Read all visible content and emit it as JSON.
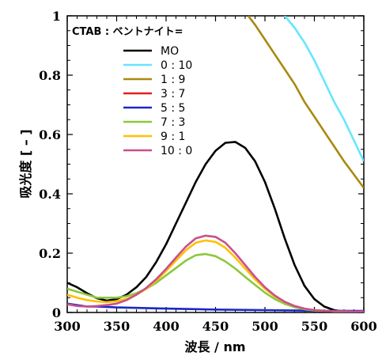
{
  "chart_data": {
    "type": "line",
    "xlabel": "波長 / nm",
    "ylabel": "吸光度 [ – ]",
    "xlim": [
      300,
      600
    ],
    "ylim": [
      0,
      1
    ],
    "x_ticks": [
      "300",
      "350",
      "400",
      "450",
      "500",
      "550",
      "600"
    ],
    "y_ticks": [
      "0",
      "0.2",
      "0.4",
      "0.6",
      "0.8",
      "1"
    ],
    "grid": false,
    "legend": {
      "title": "CTAB : ベントナイト=",
      "placement": "top-left",
      "entries": [
        "MO",
        "0 : 10",
        "1 : 9",
        "3 : 7",
        "5 : 5",
        "7 : 3",
        "9 : 1",
        "10 : 0"
      ]
    },
    "series": [
      {
        "name": "MO",
        "color": "#000000",
        "points": [
          [
            300,
            0.1
          ],
          [
            310,
            0.085
          ],
          [
            320,
            0.065
          ],
          [
            330,
            0.048
          ],
          [
            340,
            0.04
          ],
          [
            350,
            0.045
          ],
          [
            360,
            0.06
          ],
          [
            370,
            0.085
          ],
          [
            380,
            0.12
          ],
          [
            390,
            0.17
          ],
          [
            400,
            0.23
          ],
          [
            410,
            0.3
          ],
          [
            420,
            0.37
          ],
          [
            430,
            0.44
          ],
          [
            440,
            0.5
          ],
          [
            450,
            0.545
          ],
          [
            460,
            0.572
          ],
          [
            470,
            0.575
          ],
          [
            480,
            0.555
          ],
          [
            490,
            0.51
          ],
          [
            500,
            0.44
          ],
          [
            510,
            0.35
          ],
          [
            520,
            0.25
          ],
          [
            530,
            0.16
          ],
          [
            540,
            0.09
          ],
          [
            550,
            0.045
          ],
          [
            560,
            0.02
          ],
          [
            570,
            0.008
          ],
          [
            580,
            0.003
          ],
          [
            600,
            0.002
          ]
        ]
      },
      {
        "name": "0 : 10",
        "color": "#66E6FF",
        "points": [
          [
            520,
            1.0
          ],
          [
            530,
            0.96
          ],
          [
            540,
            0.91
          ],
          [
            550,
            0.85
          ],
          [
            560,
            0.78
          ],
          [
            570,
            0.71
          ],
          [
            580,
            0.65
          ],
          [
            590,
            0.58
          ],
          [
            600,
            0.51
          ]
        ]
      },
      {
        "name": "1 : 9",
        "color": "#A88A10",
        "points": [
          [
            483,
            1.0
          ],
          [
            490,
            0.97
          ],
          [
            500,
            0.92
          ],
          [
            510,
            0.87
          ],
          [
            520,
            0.82
          ],
          [
            530,
            0.77
          ],
          [
            540,
            0.71
          ],
          [
            550,
            0.66
          ],
          [
            560,
            0.61
          ],
          [
            570,
            0.56
          ],
          [
            580,
            0.51
          ],
          [
            590,
            0.465
          ],
          [
            600,
            0.42
          ]
        ]
      },
      {
        "name": "3 : 7",
        "color": "#E61E1E",
        "points": [
          [
            335,
            -0.01
          ],
          [
            350,
            -0.008
          ],
          [
            400,
            -0.006
          ],
          [
            450,
            -0.005
          ],
          [
            500,
            -0.004
          ],
          [
            550,
            -0.004
          ],
          [
            600,
            -0.004
          ]
        ]
      },
      {
        "name": "5 : 5",
        "color": "#1A28C8",
        "points": [
          [
            300,
            0.03
          ],
          [
            310,
            0.025
          ],
          [
            320,
            0.02
          ],
          [
            330,
            0.02
          ],
          [
            340,
            0.019
          ],
          [
            350,
            0.017
          ],
          [
            400,
            0.013
          ],
          [
            450,
            0.01
          ],
          [
            500,
            0.008
          ],
          [
            550,
            0.006
          ],
          [
            600,
            0.005
          ]
        ]
      },
      {
        "name": "7 : 3",
        "color": "#8CC83C",
        "points": [
          [
            300,
            0.08
          ],
          [
            310,
            0.07
          ],
          [
            320,
            0.06
          ],
          [
            330,
            0.05
          ],
          [
            340,
            0.05
          ],
          [
            350,
            0.05
          ],
          [
            360,
            0.055
          ],
          [
            370,
            0.065
          ],
          [
            380,
            0.08
          ],
          [
            390,
            0.1
          ],
          [
            400,
            0.125
          ],
          [
            410,
            0.15
          ],
          [
            420,
            0.175
          ],
          [
            430,
            0.193
          ],
          [
            440,
            0.197
          ],
          [
            450,
            0.19
          ],
          [
            460,
            0.172
          ],
          [
            470,
            0.148
          ],
          [
            480,
            0.12
          ],
          [
            490,
            0.093
          ],
          [
            500,
            0.067
          ],
          [
            510,
            0.045
          ],
          [
            520,
            0.029
          ],
          [
            530,
            0.018
          ],
          [
            540,
            0.011
          ],
          [
            550,
            0.007
          ],
          [
            570,
            0.004
          ],
          [
            600,
            0.003
          ]
        ]
      },
      {
        "name": "9 : 1",
        "color": "#FFC000",
        "points": [
          [
            300,
            0.06
          ],
          [
            310,
            0.05
          ],
          [
            320,
            0.042
          ],
          [
            330,
            0.037
          ],
          [
            340,
            0.035
          ],
          [
            350,
            0.038
          ],
          [
            360,
            0.046
          ],
          [
            370,
            0.06
          ],
          [
            380,
            0.08
          ],
          [
            390,
            0.107
          ],
          [
            400,
            0.14
          ],
          [
            410,
            0.175
          ],
          [
            420,
            0.21
          ],
          [
            430,
            0.235
          ],
          [
            440,
            0.243
          ],
          [
            450,
            0.238
          ],
          [
            460,
            0.218
          ],
          [
            470,
            0.185
          ],
          [
            480,
            0.148
          ],
          [
            490,
            0.112
          ],
          [
            500,
            0.08
          ],
          [
            510,
            0.054
          ],
          [
            520,
            0.035
          ],
          [
            530,
            0.022
          ],
          [
            540,
            0.013
          ],
          [
            550,
            0.008
          ],
          [
            570,
            0.004
          ],
          [
            600,
            0.003
          ]
        ]
      },
      {
        "name": "10 : 0",
        "color": "#C8508C",
        "points": [
          [
            300,
            0.028
          ],
          [
            310,
            0.022
          ],
          [
            320,
            0.02
          ],
          [
            330,
            0.022
          ],
          [
            340,
            0.025
          ],
          [
            350,
            0.03
          ],
          [
            360,
            0.042
          ],
          [
            370,
            0.06
          ],
          [
            380,
            0.083
          ],
          [
            390,
            0.112
          ],
          [
            400,
            0.147
          ],
          [
            410,
            0.185
          ],
          [
            420,
            0.222
          ],
          [
            430,
            0.25
          ],
          [
            440,
            0.259
          ],
          [
            450,
            0.255
          ],
          [
            460,
            0.235
          ],
          [
            470,
            0.2
          ],
          [
            480,
            0.16
          ],
          [
            490,
            0.12
          ],
          [
            500,
            0.085
          ],
          [
            510,
            0.057
          ],
          [
            520,
            0.036
          ],
          [
            530,
            0.022
          ],
          [
            540,
            0.013
          ],
          [
            550,
            0.008
          ],
          [
            570,
            0.004
          ],
          [
            600,
            0.003
          ]
        ]
      }
    ]
  }
}
